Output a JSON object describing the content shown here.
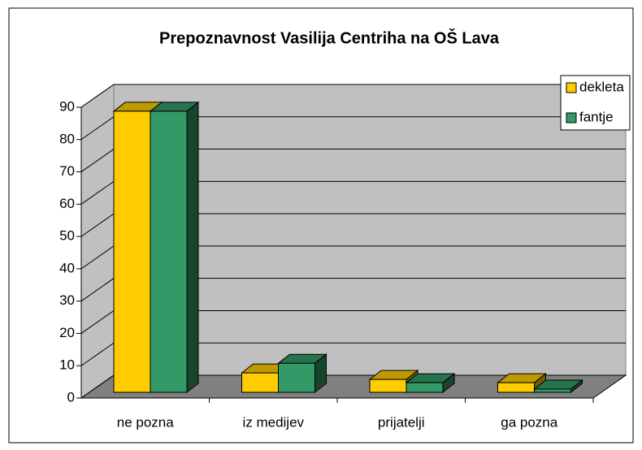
{
  "chart_data": {
    "type": "bar3d",
    "title": "Prepoznavnost Vasilija Centriha na OŠ Lava",
    "categories": [
      "ne pozna",
      "iz medijev",
      "prijatelji",
      "ga pozna"
    ],
    "series": [
      {
        "name": "dekleta",
        "color": "#ffcc00",
        "values": [
          87,
          6,
          4,
          3
        ]
      },
      {
        "name": "fantje",
        "color": "#339966",
        "values": [
          87,
          9,
          3,
          1
        ]
      }
    ],
    "ylim": [
      0,
      90
    ],
    "yticks": [
      0,
      10,
      20,
      30,
      40,
      50,
      60,
      70,
      80,
      90
    ],
    "grid": true,
    "legend": "right"
  }
}
